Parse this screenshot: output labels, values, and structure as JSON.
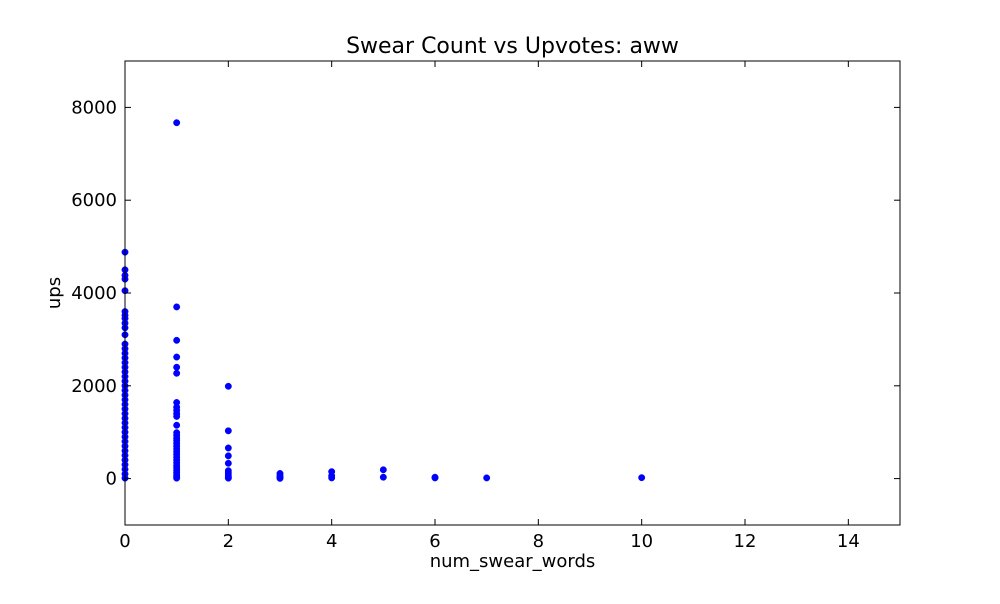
{
  "chart_data": {
    "type": "scatter",
    "title": "Swear Count vs Upvotes: aww",
    "xlabel": "num_swear_words",
    "ylabel": "ups",
    "xlim": [
      0,
      15
    ],
    "ylim": [
      -1000,
      9000
    ],
    "x_ticks": [
      0,
      2,
      4,
      6,
      8,
      10,
      12,
      14
    ],
    "y_ticks": [
      0,
      2000,
      4000,
      6000,
      8000
    ],
    "grid": false,
    "marker_color": "#0000ff",
    "series": [
      {
        "points": [
          [
            0,
            4880
          ],
          [
            0,
            4500
          ],
          [
            0,
            4380
          ],
          [
            0,
            4300
          ],
          [
            0,
            4050
          ],
          [
            0,
            3600
          ],
          [
            0,
            3520
          ],
          [
            0,
            3450
          ],
          [
            0,
            3350
          ],
          [
            0,
            3250
          ],
          [
            0,
            3100
          ],
          [
            0,
            2900
          ],
          [
            0,
            2800
          ],
          [
            0,
            2700
          ],
          [
            0,
            2600
          ],
          [
            0,
            2500
          ],
          [
            0,
            2400
          ],
          [
            0,
            2300
          ],
          [
            0,
            2200
          ],
          [
            0,
            2100
          ],
          [
            0,
            2000
          ],
          [
            0,
            1900
          ],
          [
            0,
            1800
          ],
          [
            0,
            1700
          ],
          [
            0,
            1600
          ],
          [
            0,
            1500
          ],
          [
            0,
            1400
          ],
          [
            0,
            1300
          ],
          [
            0,
            1200
          ],
          [
            0,
            1100
          ],
          [
            0,
            1000
          ],
          [
            0,
            900
          ],
          [
            0,
            800
          ],
          [
            0,
            700
          ],
          [
            0,
            600
          ],
          [
            0,
            500
          ],
          [
            0,
            400
          ],
          [
            0,
            300
          ],
          [
            0,
            200
          ],
          [
            0,
            100
          ],
          [
            0,
            10
          ],
          [
            1,
            7670
          ],
          [
            1,
            3700
          ],
          [
            1,
            2980
          ],
          [
            1,
            2620
          ],
          [
            1,
            2400
          ],
          [
            1,
            2270
          ],
          [
            1,
            1640
          ],
          [
            1,
            1540
          ],
          [
            1,
            1470
          ],
          [
            1,
            1400
          ],
          [
            1,
            1340
          ],
          [
            1,
            1150
          ],
          [
            1,
            990
          ],
          [
            1,
            930
          ],
          [
            1,
            870
          ],
          [
            1,
            820
          ],
          [
            1,
            760
          ],
          [
            1,
            700
          ],
          [
            1,
            640
          ],
          [
            1,
            580
          ],
          [
            1,
            520
          ],
          [
            1,
            460
          ],
          [
            1,
            400
          ],
          [
            1,
            340
          ],
          [
            1,
            280
          ],
          [
            1,
            230
          ],
          [
            1,
            180
          ],
          [
            1,
            130
          ],
          [
            1,
            80
          ],
          [
            1,
            40
          ],
          [
            1,
            10
          ],
          [
            2,
            1990
          ],
          [
            2,
            1030
          ],
          [
            2,
            660
          ],
          [
            2,
            490
          ],
          [
            2,
            330
          ],
          [
            2,
            170
          ],
          [
            2,
            120
          ],
          [
            2,
            70
          ],
          [
            2,
            30
          ],
          [
            2,
            10
          ],
          [
            3,
            110
          ],
          [
            3,
            60
          ],
          [
            3,
            25
          ],
          [
            3,
            5
          ],
          [
            4,
            150
          ],
          [
            4,
            60
          ],
          [
            4,
            15
          ],
          [
            5,
            190
          ],
          [
            5,
            30
          ],
          [
            6,
            30
          ],
          [
            6,
            15
          ],
          [
            7,
            15
          ],
          [
            10,
            20
          ]
        ]
      }
    ]
  }
}
